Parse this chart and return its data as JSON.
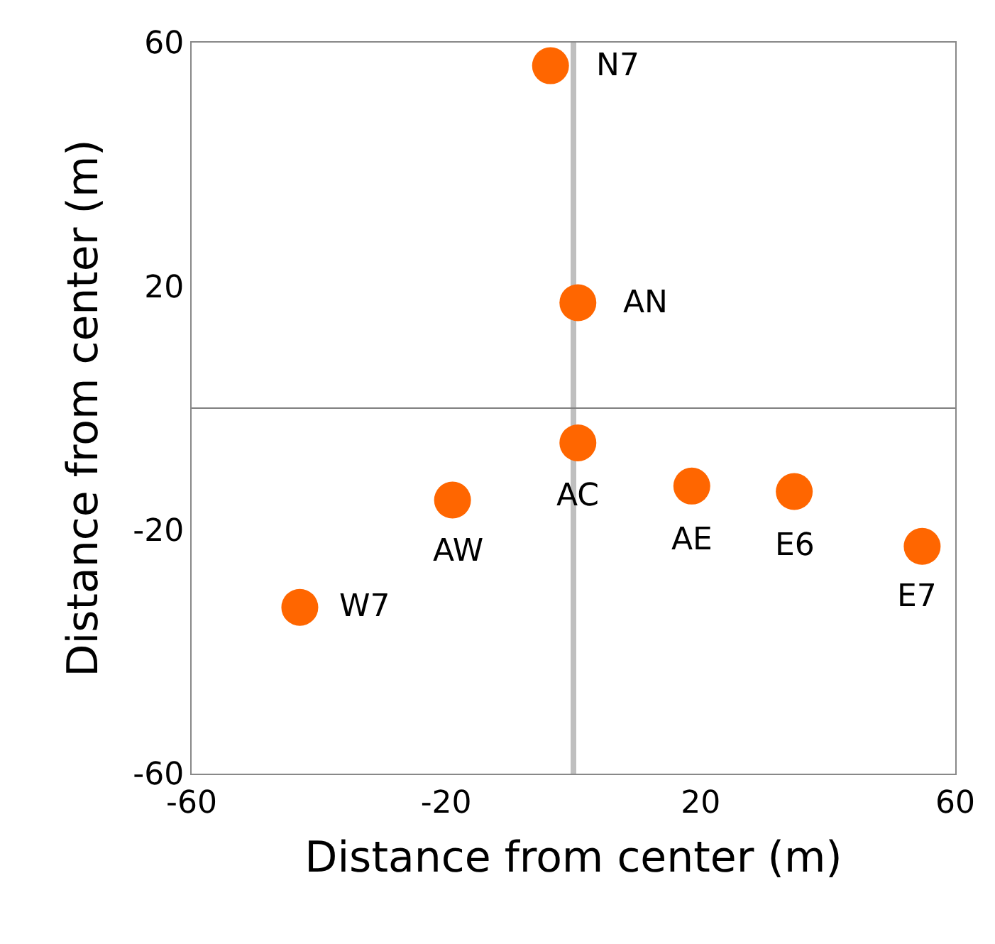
{
  "chart_data": {
    "type": "scatter",
    "xlabel": "Distance from center (m)",
    "ylabel": "Distance from center (m)",
    "x": [
      -3.6,
      0.7,
      0.7,
      18.6,
      34.7,
      54.8,
      -19,
      -43
    ],
    "series": [
      {
        "color": "#ff6600",
        "values": [
          56.2,
          17.3,
          -5.7,
          -12.8,
          -13.7,
          -22.7,
          -15.1,
          -32.7
        ]
      }
    ],
    "annotations": [
      {
        "text": "N7",
        "x": -3.6,
        "y": 56.2
      },
      {
        "text": "AN",
        "x": 0.7,
        "y": 17.3
      },
      {
        "text": "AC",
        "x": 0.7,
        "y": -5.7
      },
      {
        "text": "AE",
        "x": 18.6,
        "y": -12.8
      },
      {
        "text": "E6",
        "x": 34.7,
        "y": -13.7
      },
      {
        "text": "E7",
        "x": 54.8,
        "y": -22.7
      },
      {
        "text": "AW",
        "x": -19,
        "y": -15.1
      },
      {
        "text": "W7",
        "x": -43,
        "y": -32.7
      }
    ],
    "ref_lines": [
      {
        "axis": "x",
        "value": 0,
        "color": "#bfbfbf"
      },
      {
        "axis": "y",
        "value": 0,
        "color": "#808080"
      }
    ],
    "xlim": [
      -60,
      60
    ],
    "ylim": [
      -60,
      60
    ],
    "xticks": [
      -60,
      -20,
      20,
      60
    ],
    "yticks": [
      -60,
      -20,
      20,
      60
    ],
    "marker": "circle",
    "grid": false
  }
}
